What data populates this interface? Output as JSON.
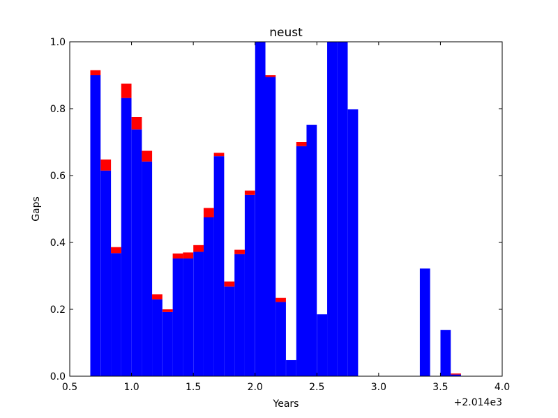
{
  "chart_data": {
    "type": "bar",
    "title": "neust",
    "xlabel": "Years",
    "ylabel": "Gaps",
    "x_offset_label": "+2.014e3",
    "xlim": [
      0.5,
      4.0
    ],
    "ylim": [
      0.0,
      1.0
    ],
    "x_ticks": [
      "0.5",
      "1.0",
      "1.5",
      "2.0",
      "2.5",
      "3.0",
      "3.5",
      "4.0"
    ],
    "y_ticks": [
      "0.0",
      "0.2",
      "0.4",
      "0.6",
      "0.8",
      "1.0"
    ],
    "bar_width": 0.0833,
    "series": [
      {
        "color": "#0000ff",
        "x": [
          0.708,
          0.792,
          0.875,
          0.958,
          1.042,
          1.125,
          1.208,
          1.292,
          1.375,
          1.458,
          1.542,
          1.625,
          1.708,
          1.792,
          1.875,
          1.958,
          2.042,
          2.125,
          2.208,
          2.292,
          2.375,
          2.458,
          2.542,
          2.625,
          2.708,
          2.792,
          3.375,
          3.542,
          3.625
        ],
        "values": [
          0.9,
          0.615,
          0.368,
          0.832,
          0.738,
          0.642,
          0.23,
          0.192,
          0.352,
          0.352,
          0.372,
          0.475,
          0.658,
          0.268,
          0.365,
          0.542,
          1.0,
          0.895,
          0.222,
          0.048,
          0.688,
          0.752,
          0.185,
          1.0,
          1.0,
          0.798,
          0.322,
          0.138,
          0.005
        ]
      },
      {
        "color": "#ff0000",
        "x": [
          0.708,
          0.792,
          0.875,
          0.958,
          1.042,
          1.125,
          1.208,
          1.292,
          1.375,
          1.458,
          1.542,
          1.625,
          1.708,
          1.792,
          1.875,
          1.958,
          2.042,
          2.125,
          2.208,
          2.292,
          2.375,
          2.458,
          2.542,
          2.625,
          2.708,
          2.792,
          3.375,
          3.542,
          3.625
        ],
        "values": [
          0.015,
          0.033,
          0.018,
          0.043,
          0.037,
          0.032,
          0.015,
          0.008,
          0.015,
          0.018,
          0.02,
          0.028,
          0.01,
          0.015,
          0.013,
          0.013,
          0.0,
          0.005,
          0.012,
          0.0,
          0.012,
          0.0,
          0.0,
          0.0,
          0.0,
          0.0,
          0.0,
          0.0,
          0.003
        ]
      }
    ]
  }
}
